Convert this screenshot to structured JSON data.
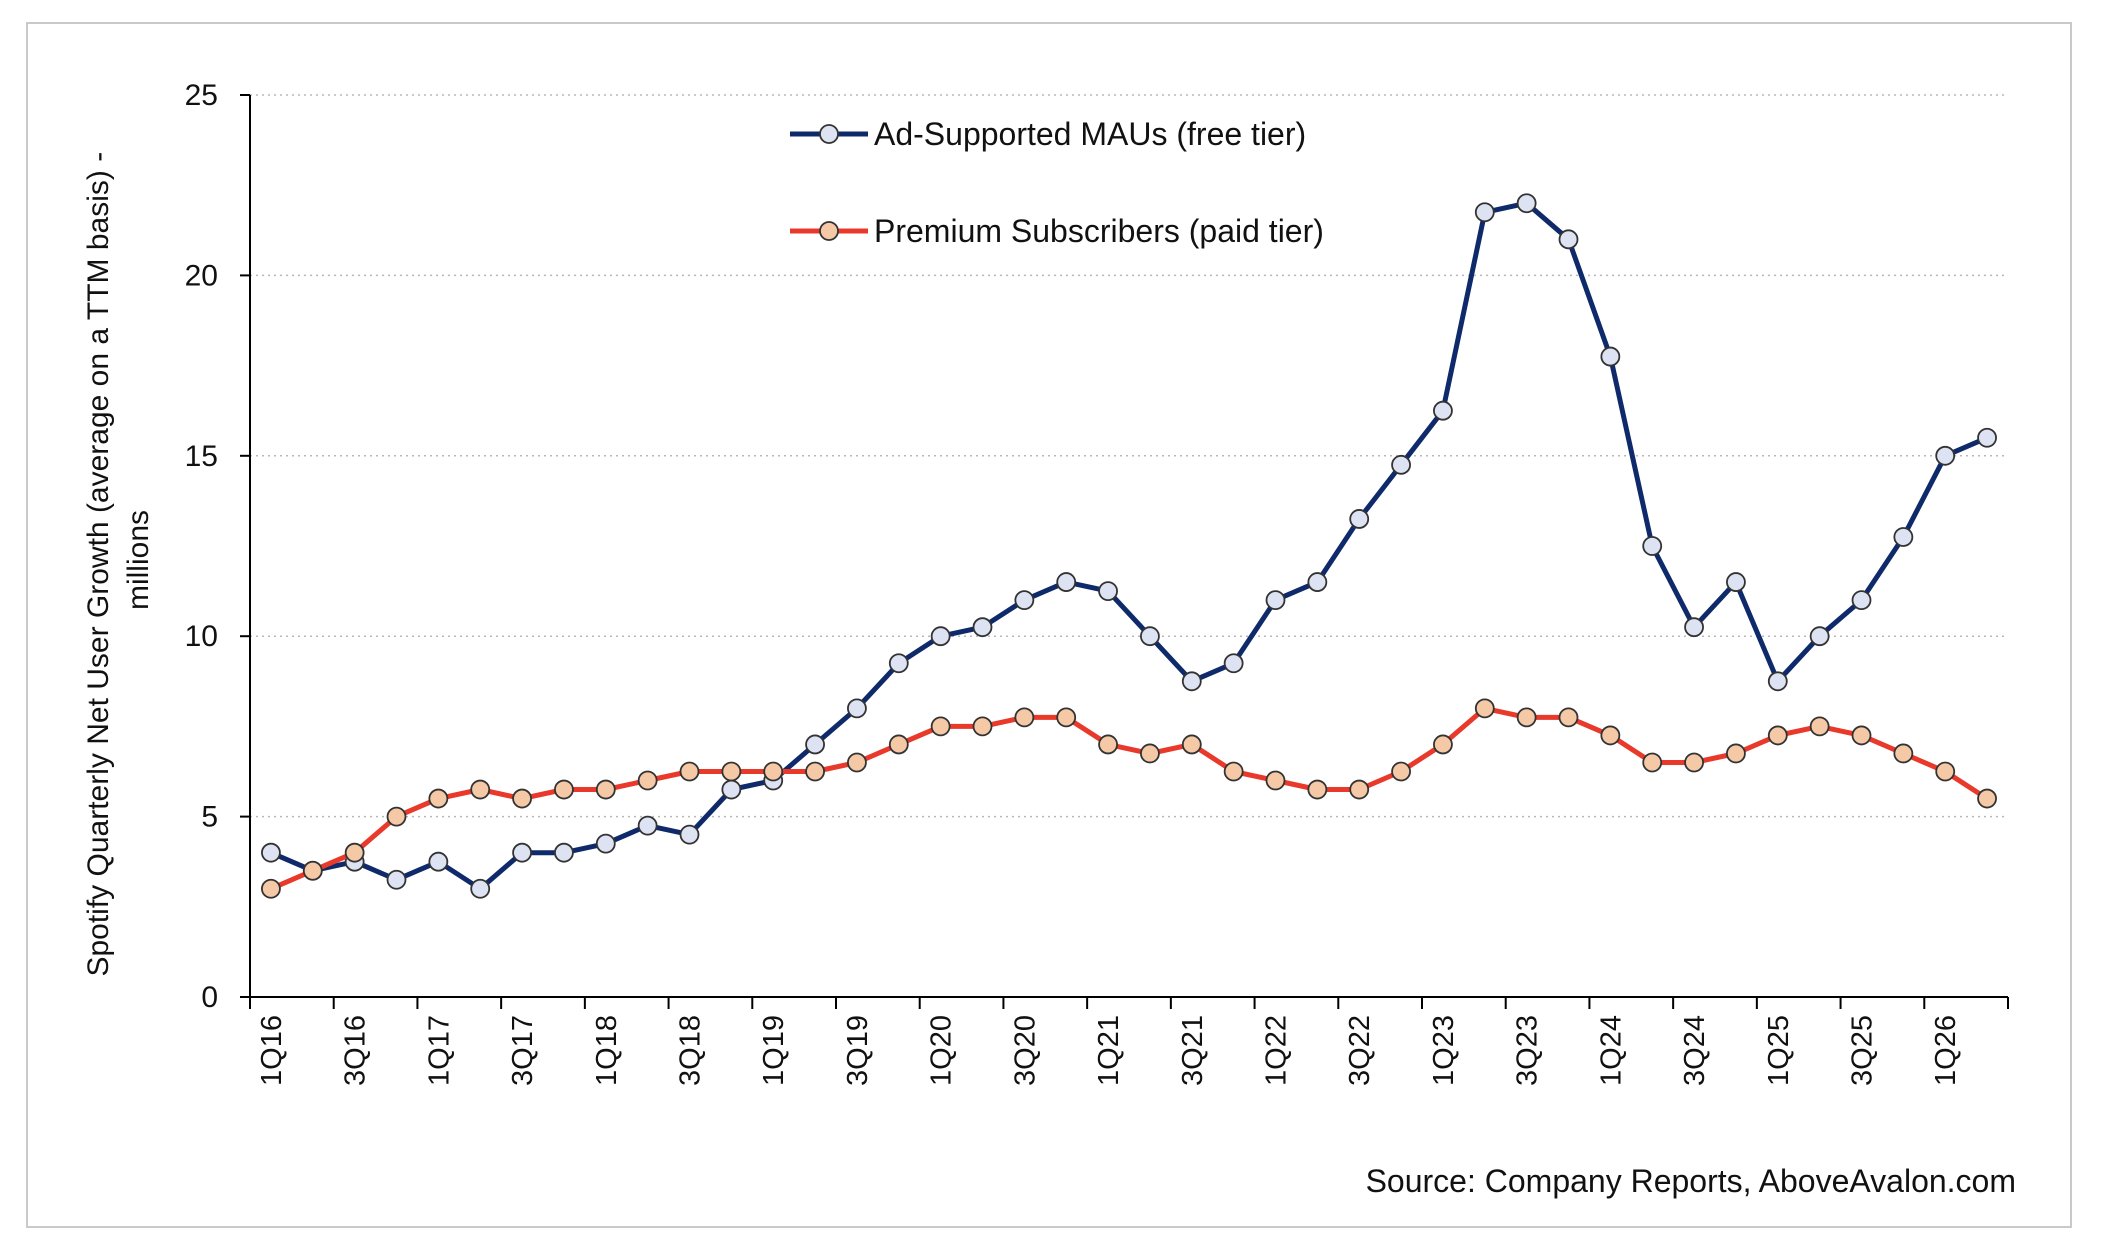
{
  "chart_data": {
    "type": "line",
    "title": "",
    "ylabel_lines": [
      "Spotify Quarterly Net User Growth (average on a TTM basis) -",
      "millions"
    ],
    "xlabel": "",
    "ylim": [
      0,
      25
    ],
    "yticks": [
      0,
      5,
      10,
      15,
      20,
      25
    ],
    "grid": "horizontal dotted",
    "legend_position": "top-center",
    "categories": [
      "1Q16",
      "2Q16",
      "3Q16",
      "4Q16",
      "1Q17",
      "2Q17",
      "3Q17",
      "4Q17",
      "1Q18",
      "2Q18",
      "3Q18",
      "4Q18",
      "1Q19",
      "2Q19",
      "3Q19",
      "4Q19",
      "1Q20",
      "2Q20",
      "3Q20",
      "4Q20",
      "1Q21",
      "2Q21",
      "3Q21",
      "4Q21",
      "1Q22",
      "2Q22",
      "3Q22",
      "4Q22",
      "1Q23",
      "2Q23",
      "3Q23",
      "4Q23",
      "1Q24",
      "2Q24",
      "3Q24",
      "4Q24",
      "1Q25",
      "2Q25",
      "3Q25",
      "4Q25",
      "1Q26",
      "2Q26"
    ],
    "tick_labels": [
      "1Q16",
      "3Q16",
      "1Q17",
      "3Q17",
      "1Q18",
      "3Q18",
      "1Q19",
      "3Q19",
      "1Q20",
      "3Q20",
      "1Q21",
      "3Q21",
      "1Q22",
      "3Q22",
      "1Q23",
      "3Q23",
      "1Q24",
      "3Q24",
      "1Q25",
      "3Q25",
      "1Q26"
    ],
    "series": [
      {
        "name": "Ad-Supported MAUs (free tier)",
        "line_color": "#0f2a6b",
        "marker_fill": "#dde3f2",
        "values": [
          4.0,
          3.5,
          3.75,
          3.25,
          3.75,
          3.0,
          4.0,
          4.0,
          4.25,
          4.75,
          4.5,
          5.75,
          6.0,
          7.0,
          8.0,
          9.25,
          10.0,
          10.25,
          11.0,
          11.5,
          11.25,
          10.0,
          8.75,
          9.25,
          11.0,
          11.5,
          13.25,
          14.75,
          16.25,
          21.75,
          22.0,
          21.0,
          17.75,
          12.5,
          10.25,
          11.5,
          8.75,
          10.0,
          11.0,
          12.75,
          15.0,
          15.5
        ]
      },
      {
        "name": "Premium Subscribers (paid tier)",
        "line_color": "#e8392b",
        "marker_fill": "#f6c9a6",
        "values": [
          3.0,
          3.5,
          4.0,
          5.0,
          5.5,
          5.75,
          5.5,
          5.75,
          5.75,
          6.0,
          6.25,
          6.25,
          6.25,
          6.25,
          6.5,
          7.0,
          7.5,
          7.5,
          7.75,
          7.75,
          7.0,
          6.75,
          7.0,
          6.25,
          6.0,
          5.75,
          5.75,
          6.25,
          7.0,
          8.0,
          7.75,
          7.75,
          7.25,
          6.5,
          6.5,
          6.75,
          7.25,
          7.5,
          7.25,
          6.75,
          6.25,
          5.5
        ]
      }
    ]
  },
  "source_text": "Source: Company Reports, AboveAvalon.com"
}
